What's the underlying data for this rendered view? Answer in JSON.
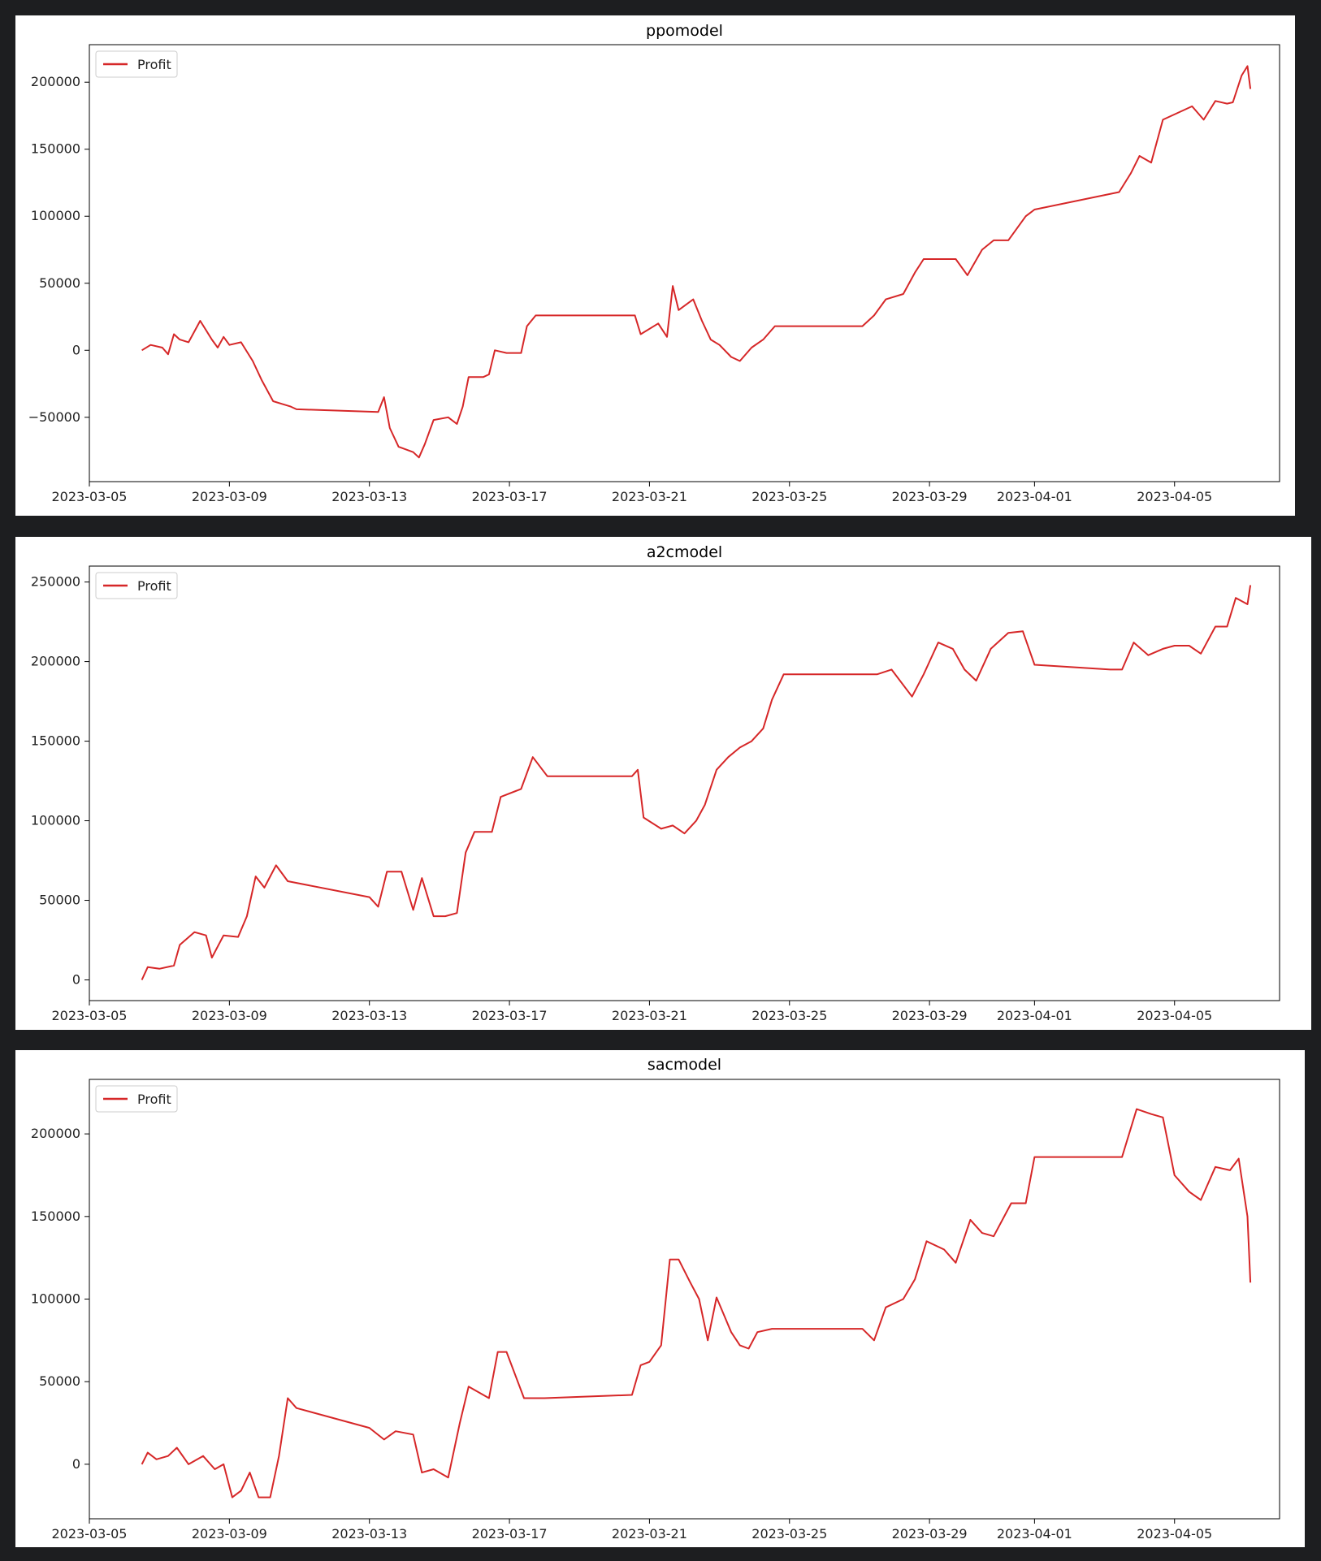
{
  "colors": {
    "background": "#1d1e20",
    "panel": "#ffffff",
    "series": "#d62728"
  },
  "chart_data": [
    {
      "type": "line",
      "title": "ppomodel",
      "xlabel": "",
      "ylabel": "",
      "x_ticks": [
        "2023-03-05",
        "2023-03-09",
        "2023-03-13",
        "2023-03-17",
        "2023-03-21",
        "2023-03-25",
        "2023-03-29",
        "2023-04-01",
        "2023-04-05"
      ],
      "y_ticks": [
        200000,
        150000,
        100000,
        50000,
        0,
        -50000
      ],
      "xlim": [
        "2023-03-05",
        "2023-04-08"
      ],
      "ylim": [
        -98000,
        228000
      ],
      "grid": false,
      "legend": "top-left",
      "series": [
        {
          "name": "Profit",
          "x": [
            "2023-03-06 12:00",
            "2023-03-06 18:00",
            "2023-03-07 02:00",
            "2023-03-07 06:00",
            "2023-03-07 10:00",
            "2023-03-07 14:00",
            "2023-03-07 20:00",
            "2023-03-08 04:00",
            "2023-03-08 12:00",
            "2023-03-08 16:00",
            "2023-03-08 20:00",
            "2023-03-09 00:00",
            "2023-03-09 08:00",
            "2023-03-09 16:00",
            "2023-03-09 22:00",
            "2023-03-10 06:00",
            "2023-03-10 12:00",
            "2023-03-10 18:00",
            "2023-03-10 22:00",
            "2023-03-13 06:00",
            "2023-03-13 10:00",
            "2023-03-13 14:00",
            "2023-03-13 20:00",
            "2023-03-14 06:00",
            "2023-03-14 10:00",
            "2023-03-14 14:00",
            "2023-03-14 20:00",
            "2023-03-15 06:00",
            "2023-03-15 12:00",
            "2023-03-15 16:00",
            "2023-03-15 20:00",
            "2023-03-16 06:00",
            "2023-03-16 10:00",
            "2023-03-16 14:00",
            "2023-03-16 22:00",
            "2023-03-17 08:00",
            "2023-03-17 12:00",
            "2023-03-17 18:00",
            "2023-03-19 12:00",
            "2023-03-20 14:00",
            "2023-03-20 18:00",
            "2023-03-21 06:00",
            "2023-03-21 12:00",
            "2023-03-21 16:00",
            "2023-03-21 20:00",
            "2023-03-22 06:00",
            "2023-03-22 12:00",
            "2023-03-22 18:00",
            "2023-03-23 00:00",
            "2023-03-23 08:00",
            "2023-03-23 14:00",
            "2023-03-23 22:00",
            "2023-03-24 06:00",
            "2023-03-24 14:00",
            "2023-03-27 02:00",
            "2023-03-27 10:00",
            "2023-03-27 18:00",
            "2023-03-28 06:00",
            "2023-03-28 14:00",
            "2023-03-28 20:00",
            "2023-03-29 06:00",
            "2023-03-29 18:00",
            "2023-03-30 02:00",
            "2023-03-30 12:00",
            "2023-03-30 20:00",
            "2023-03-31 06:00",
            "2023-03-31 18:00",
            "2023-04-01 00:00",
            "2023-04-03 10:00",
            "2023-04-03 18:00",
            "2023-04-04 00:00",
            "2023-04-04 08:00",
            "2023-04-04 16:00",
            "2023-04-05 04:00",
            "2023-04-05 12:00",
            "2023-04-05 20:00",
            "2023-04-06 04:00",
            "2023-04-06 12:00",
            "2023-04-06 16:00",
            "2023-04-06 22:00",
            "2023-04-07 02:00",
            "2023-04-07 04:00"
          ],
          "y": [
            0,
            4000,
            2000,
            -3000,
            12000,
            8000,
            6000,
            22000,
            8000,
            2000,
            10000,
            4000,
            6000,
            -8000,
            -22000,
            -38000,
            -40000,
            -42000,
            -44000,
            -46000,
            -35000,
            -58000,
            -72000,
            -76000,
            -80000,
            -70000,
            -52000,
            -50000,
            -55000,
            -42000,
            -20000,
            -20000,
            -18000,
            0,
            -2000,
            -2000,
            18000,
            26000,
            26000,
            26000,
            12000,
            20000,
            10000,
            48000,
            30000,
            38000,
            22000,
            8000,
            4000,
            -5000,
            -8000,
            2000,
            8000,
            18000,
            18000,
            26000,
            38000,
            42000,
            58000,
            68000,
            68000,
            68000,
            56000,
            75000,
            82000,
            82000,
            100000,
            105000,
            118000,
            132000,
            145000,
            140000,
            172000,
            178000,
            182000,
            172000,
            186000,
            184000,
            185000,
            205000,
            212000,
            195000
          ]
        }
      ]
    },
    {
      "type": "line",
      "title": "a2cmodel",
      "xlabel": "",
      "ylabel": "",
      "x_ticks": [
        "2023-03-05",
        "2023-03-09",
        "2023-03-13",
        "2023-03-17",
        "2023-03-21",
        "2023-03-25",
        "2023-03-29",
        "2023-04-01",
        "2023-04-05"
      ],
      "y_ticks": [
        250000,
        200000,
        150000,
        100000,
        50000,
        0
      ],
      "xlim": [
        "2023-03-05",
        "2023-04-08"
      ],
      "ylim": [
        -13000,
        260000
      ],
      "grid": false,
      "legend": "top-left",
      "series": [
        {
          "name": "Profit",
          "x": [
            "2023-03-06 12:00",
            "2023-03-06 16:00",
            "2023-03-07 00:00",
            "2023-03-07 10:00",
            "2023-03-07 14:00",
            "2023-03-08 00:00",
            "2023-03-08 08:00",
            "2023-03-08 12:00",
            "2023-03-08 20:00",
            "2023-03-09 06:00",
            "2023-03-09 12:00",
            "2023-03-09 18:00",
            "2023-03-10 00:00",
            "2023-03-10 08:00",
            "2023-03-10 16:00",
            "2023-03-13 00:00",
            "2023-03-13 06:00",
            "2023-03-13 12:00",
            "2023-03-13 22:00",
            "2023-03-14 06:00",
            "2023-03-14 12:00",
            "2023-03-14 20:00",
            "2023-03-15 04:00",
            "2023-03-15 12:00",
            "2023-03-15 18:00",
            "2023-03-16 00:00",
            "2023-03-16 12:00",
            "2023-03-16 18:00",
            "2023-03-17 08:00",
            "2023-03-17 16:00",
            "2023-03-18 02:00",
            "2023-03-20 12:00",
            "2023-03-20 16:00",
            "2023-03-20 20:00",
            "2023-03-21 08:00",
            "2023-03-21 16:00",
            "2023-03-22 00:00",
            "2023-03-22 08:00",
            "2023-03-22 14:00",
            "2023-03-22 22:00",
            "2023-03-23 06:00",
            "2023-03-23 14:00",
            "2023-03-23 22:00",
            "2023-03-24 06:00",
            "2023-03-24 12:00",
            "2023-03-24 20:00",
            "2023-03-27 04:00",
            "2023-03-27 12:00",
            "2023-03-27 22:00",
            "2023-03-28 12:00",
            "2023-03-28 20:00",
            "2023-03-29 06:00",
            "2023-03-29 16:00",
            "2023-03-30 00:00",
            "2023-03-30 08:00",
            "2023-03-30 18:00",
            "2023-03-31 06:00",
            "2023-03-31 16:00",
            "2023-04-01 00:00",
            "2023-04-03 04:00",
            "2023-04-03 12:00",
            "2023-04-03 20:00",
            "2023-04-04 06:00",
            "2023-04-04 16:00",
            "2023-04-05 00:00",
            "2023-04-05 10:00",
            "2023-04-05 18:00",
            "2023-04-06 04:00",
            "2023-04-06 12:00",
            "2023-04-06 18:00",
            "2023-04-07 02:00",
            "2023-04-07 04:00"
          ],
          "y": [
            0,
            8000,
            7000,
            9000,
            22000,
            30000,
            28000,
            14000,
            28000,
            27000,
            40000,
            65000,
            58000,
            72000,
            62000,
            52000,
            46000,
            68000,
            68000,
            44000,
            64000,
            40000,
            40000,
            42000,
            80000,
            93000,
            93000,
            115000,
            120000,
            140000,
            128000,
            128000,
            132000,
            102000,
            95000,
            97000,
            92000,
            100000,
            110000,
            132000,
            140000,
            146000,
            150000,
            158000,
            176000,
            192000,
            192000,
            192000,
            195000,
            178000,
            192000,
            212000,
            208000,
            195000,
            188000,
            208000,
            218000,
            219000,
            198000,
            195000,
            195000,
            212000,
            204000,
            208000,
            210000,
            210000,
            205000,
            222000,
            222000,
            240000,
            236000,
            248000
          ]
        }
      ]
    },
    {
      "type": "line",
      "title": "sacmodel",
      "xlabel": "",
      "ylabel": "",
      "x_ticks": [
        "2023-03-05",
        "2023-03-09",
        "2023-03-13",
        "2023-03-17",
        "2023-03-21",
        "2023-03-25",
        "2023-03-29",
        "2023-04-01",
        "2023-04-05"
      ],
      "y_ticks": [
        200000,
        150000,
        100000,
        50000,
        0
      ],
      "xlim": [
        "2023-03-05",
        "2023-04-08"
      ],
      "ylim": [
        -33000,
        233000
      ],
      "grid": false,
      "legend": "top-left",
      "series": [
        {
          "name": "Profit",
          "x": [
            "2023-03-06 12:00",
            "2023-03-06 16:00",
            "2023-03-06 22:00",
            "2023-03-07 06:00",
            "2023-03-07 12:00",
            "2023-03-07 20:00",
            "2023-03-08 06:00",
            "2023-03-08 14:00",
            "2023-03-08 20:00",
            "2023-03-09 02:00",
            "2023-03-09 08:00",
            "2023-03-09 14:00",
            "2023-03-09 20:00",
            "2023-03-10 04:00",
            "2023-03-10 10:00",
            "2023-03-10 16:00",
            "2023-03-10 22:00",
            "2023-03-13 00:00",
            "2023-03-13 10:00",
            "2023-03-13 18:00",
            "2023-03-14 06:00",
            "2023-03-14 12:00",
            "2023-03-14 20:00",
            "2023-03-15 06:00",
            "2023-03-15 14:00",
            "2023-03-15 20:00",
            "2023-03-16 10:00",
            "2023-03-16 16:00",
            "2023-03-16 22:00",
            "2023-03-17 10:00",
            "2023-03-17 18:00",
            "2023-03-18 00:00",
            "2023-03-20 12:00",
            "2023-03-20 18:00",
            "2023-03-21 00:00",
            "2023-03-21 08:00",
            "2023-03-21 14:00",
            "2023-03-21 20:00",
            "2023-03-22 04:00",
            "2023-03-22 10:00",
            "2023-03-22 16:00",
            "2023-03-22 22:00",
            "2023-03-23 08:00",
            "2023-03-23 14:00",
            "2023-03-23 20:00",
            "2023-03-24 02:00",
            "2023-03-24 12:00",
            "2023-03-27 02:00",
            "2023-03-27 10:00",
            "2023-03-27 18:00",
            "2023-03-28 06:00",
            "2023-03-28 14:00",
            "2023-03-28 22:00",
            "2023-03-29 10:00",
            "2023-03-29 18:00",
            "2023-03-30 04:00",
            "2023-03-30 12:00",
            "2023-03-30 20:00",
            "2023-03-31 08:00",
            "2023-03-31 18:00",
            "2023-04-01 00:00",
            "2023-04-03 06:00",
            "2023-04-03 12:00",
            "2023-04-03 22:00",
            "2023-04-04 08:00",
            "2023-04-04 16:00",
            "2023-04-05 00:00",
            "2023-04-05 10:00",
            "2023-04-05 18:00",
            "2023-04-06 04:00",
            "2023-04-06 14:00",
            "2023-04-06 20:00",
            "2023-04-07 02:00",
            "2023-04-07 04:00"
          ],
          "y": [
            0,
            7000,
            3000,
            5000,
            10000,
            0,
            5000,
            -3000,
            0,
            -20000,
            -16000,
            -5000,
            -20000,
            -20000,
            5000,
            40000,
            34000,
            22000,
            15000,
            20000,
            18000,
            -5000,
            -3000,
            -8000,
            25000,
            47000,
            40000,
            68000,
            68000,
            40000,
            40000,
            40000,
            42000,
            60000,
            62000,
            72000,
            124000,
            124000,
            110000,
            100000,
            75000,
            101000,
            80000,
            72000,
            70000,
            80000,
            82000,
            82000,
            75000,
            95000,
            100000,
            112000,
            135000,
            130000,
            122000,
            148000,
            140000,
            138000,
            158000,
            158000,
            186000,
            186000,
            186000,
            215000,
            212000,
            210000,
            175000,
            165000,
            160000,
            180000,
            178000,
            185000,
            150000,
            110000
          ]
        }
      ]
    }
  ]
}
